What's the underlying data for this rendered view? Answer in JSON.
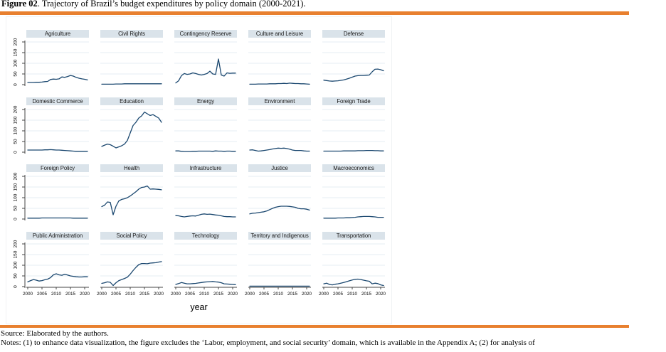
{
  "document": {
    "title_prefix": "Figure 02",
    "title_rest": ". Trajectory of Brazil’s budget expenditures by policy domain (2000-2021).",
    "source_line": "Source: Elaborated by the authors.",
    "notes_line": "Notes: (1) to enhance data visualization, the figure excludes the ‘Labor, employment, and social security’ domain, which is available in the Appendix A; (2) for analysis of",
    "accent_rule_color": "#E8802F"
  },
  "chart_data": {
    "type": "line",
    "layout": "small-multiples",
    "grid": {
      "rows": 4,
      "cols": 5
    },
    "title": "Trajectory of Brazil’s budget expenditures by policy domain (2000-2021)",
    "xlabel": "year",
    "ylabel": "",
    "ylim": [
      0,
      200
    ],
    "y_ticks": [
      0,
      50,
      100,
      150,
      200
    ],
    "x_ticks": [
      2000,
      2005,
      2010,
      2015,
      2020
    ],
    "gridlines": "horizontal",
    "line_color": "#1A476F",
    "panel_header_bg": "#DAE3EA",
    "gridline_color": "#E6EDF3",
    "axis_color": "#444444",
    "x": [
      2000,
      2001,
      2002,
      2003,
      2004,
      2005,
      2006,
      2007,
      2008,
      2009,
      2010,
      2011,
      2012,
      2013,
      2014,
      2015,
      2016,
      2017,
      2018,
      2019,
      2020,
      2021
    ],
    "panels": [
      {
        "title": "Agriculture",
        "values": [
          10,
          10,
          10,
          11,
          11,
          12,
          14,
          15,
          24,
          26,
          25,
          27,
          36,
          34,
          38,
          43,
          40,
          34,
          30,
          27,
          25,
          22
        ]
      },
      {
        "title": "Civil Rights",
        "values": [
          2,
          2,
          2,
          2,
          2,
          3,
          3,
          3,
          4,
          4,
          4,
          4,
          4,
          4,
          4,
          4,
          4,
          4,
          4,
          4,
          4,
          4
        ]
      },
      {
        "title": "Contingency Reserve",
        "values": [
          8,
          18,
          42,
          52,
          48,
          50,
          55,
          52,
          48,
          45,
          48,
          52,
          63,
          50,
          48,
          120,
          45,
          40,
          55,
          53,
          54,
          54
        ]
      },
      {
        "title": "Culture and Leisure",
        "values": [
          2,
          2,
          2,
          3,
          3,
          3,
          3,
          4,
          4,
          4,
          5,
          5,
          6,
          5,
          7,
          6,
          5,
          5,
          4,
          4,
          3,
          2
        ]
      },
      {
        "title": "Defense",
        "values": [
          21,
          19,
          17,
          16,
          17,
          18,
          20,
          22,
          26,
          30,
          35,
          40,
          42,
          43,
          43,
          44,
          45,
          60,
          72,
          73,
          70,
          65
        ]
      },
      {
        "title": "Domestic Commerce",
        "values": [
          10,
          10,
          10,
          10,
          10,
          10,
          11,
          11,
          12,
          11,
          10,
          10,
          9,
          8,
          7,
          6,
          5,
          4,
          4,
          4,
          4,
          4
        ]
      },
      {
        "title": "Education",
        "values": [
          27,
          33,
          38,
          35,
          28,
          20,
          25,
          30,
          38,
          55,
          90,
          125,
          140,
          160,
          170,
          188,
          180,
          172,
          176,
          168,
          160,
          140
        ]
      },
      {
        "title": "Energy",
        "values": [
          6,
          6,
          4,
          3,
          3,
          3,
          4,
          4,
          5,
          5,
          5,
          5,
          5,
          4,
          6,
          5,
          5,
          4,
          5,
          5,
          4,
          4
        ]
      },
      {
        "title": "Environment",
        "values": [
          10,
          11,
          8,
          5,
          6,
          8,
          10,
          12,
          15,
          17,
          19,
          18,
          19,
          17,
          14,
          10,
          8,
          8,
          8,
          6,
          5,
          5
        ]
      },
      {
        "title": "Foreign Trade",
        "values": [
          5,
          5,
          5,
          5,
          5,
          5,
          5,
          6,
          6,
          6,
          6,
          6,
          7,
          7,
          7,
          8,
          8,
          8,
          7,
          7,
          6,
          6
        ]
      },
      {
        "title": "Foreign Policy",
        "values": [
          4,
          4,
          4,
          4,
          4,
          5,
          5,
          5,
          5,
          5,
          5,
          5,
          5,
          5,
          5,
          5,
          4,
          4,
          4,
          4,
          4,
          4
        ]
      },
      {
        "title": "Health",
        "values": [
          58,
          65,
          80,
          78,
          20,
          60,
          85,
          92,
          95,
          100,
          108,
          118,
          128,
          140,
          148,
          150,
          155,
          140,
          141,
          140,
          139,
          137
        ]
      },
      {
        "title": "Infrastructure",
        "values": [
          16,
          15,
          12,
          10,
          12,
          14,
          15,
          14,
          18,
          22,
          24,
          22,
          23,
          21,
          19,
          18,
          15,
          12,
          11,
          11,
          10,
          10
        ]
      },
      {
        "title": "Justice",
        "values": [
          24,
          27,
          28,
          30,
          32,
          34,
          38,
          44,
          50,
          55,
          58,
          60,
          60,
          60,
          59,
          57,
          55,
          50,
          48,
          48,
          46,
          42
        ]
      },
      {
        "title": "Macroeconomics",
        "values": [
          4,
          4,
          4,
          4,
          4,
          5,
          5,
          5,
          6,
          6,
          7,
          8,
          10,
          11,
          12,
          12,
          12,
          11,
          10,
          8,
          8,
          8
        ]
      },
      {
        "title": "Public Administration",
        "values": [
          22,
          28,
          33,
          30,
          26,
          28,
          32,
          35,
          42,
          55,
          60,
          55,
          53,
          58,
          54,
          50,
          48,
          46,
          45,
          45,
          46,
          46
        ]
      },
      {
        "title": "Social Policy",
        "values": [
          15,
          18,
          22,
          20,
          5,
          18,
          28,
          33,
          38,
          44,
          58,
          75,
          90,
          103,
          108,
          108,
          107,
          110,
          111,
          112,
          115,
          117
        ]
      },
      {
        "title": "Technology",
        "values": [
          10,
          14,
          19,
          16,
          13,
          13,
          14,
          15,
          17,
          19,
          21,
          22,
          23,
          24,
          22,
          21,
          18,
          13,
          12,
          11,
          10,
          9
        ]
      },
      {
        "title": "Territory and Indigenous",
        "values": [
          2,
          2,
          2,
          2,
          2,
          2,
          2,
          2,
          2,
          2,
          2,
          2,
          2,
          2,
          2,
          2,
          2,
          2,
          2,
          2,
          2,
          2
        ]
      },
      {
        "title": "Transportation",
        "values": [
          13,
          16,
          10,
          8,
          11,
          13,
          16,
          19,
          23,
          27,
          31,
          34,
          35,
          33,
          30,
          27,
          25,
          13,
          16,
          14,
          8,
          5
        ]
      }
    ]
  }
}
